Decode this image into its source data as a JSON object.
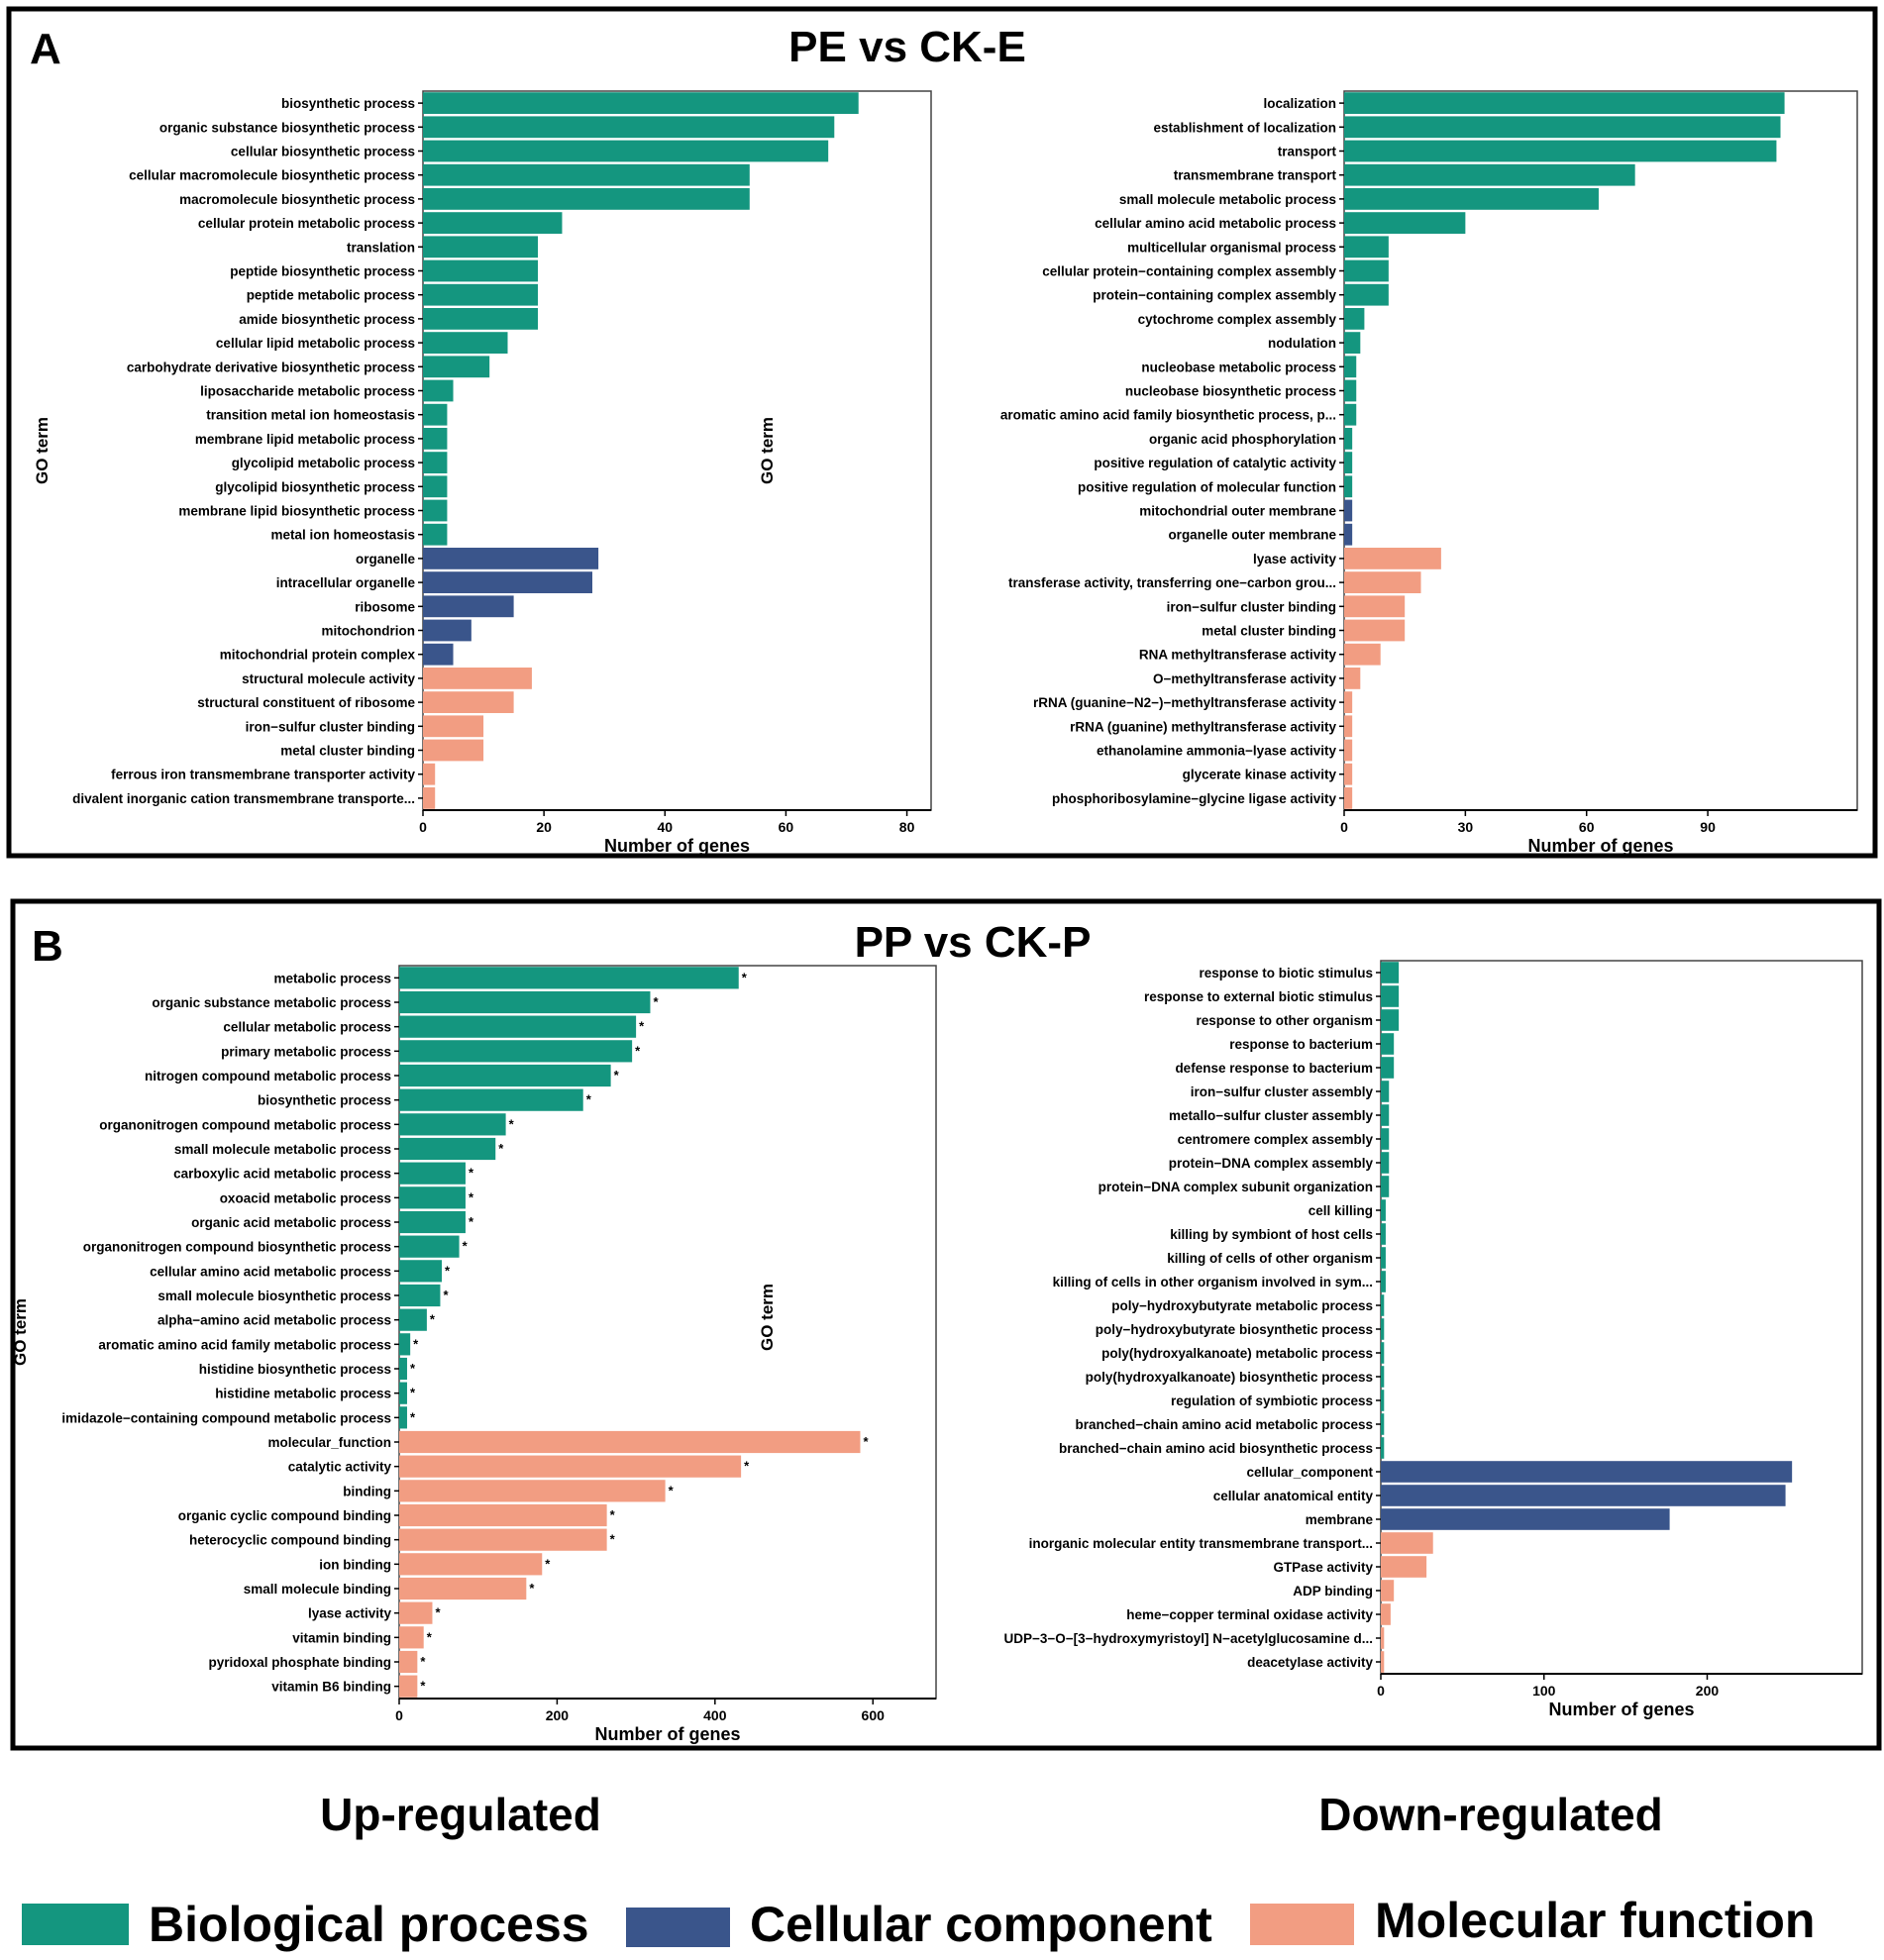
{
  "panels": [
    {
      "letter": "A",
      "title": "PE vs CK-E"
    },
    {
      "letter": "B",
      "title": "PP vs CK-P"
    }
  ],
  "footer": {
    "up_label": "Up-regulated",
    "down_label": "Down-regulated",
    "legend": [
      {
        "label": "Biological process",
        "color": "#14967F"
      },
      {
        "label": "Cellular component",
        "color": "#3A558B"
      },
      {
        "label": "Molecular function",
        "color": "#F29D82"
      }
    ]
  },
  "chart_data": [
    {
      "panel": "A",
      "type": "bar",
      "orientation": "horizontal",
      "xlabel": "Number of genes",
      "ylabel": "GO term",
      "xlim": [
        0,
        84
      ],
      "xticks": [
        0,
        20,
        40,
        60,
        80
      ],
      "bars": [
        {
          "term": "biosynthetic process",
          "value": 72,
          "cat": "BP"
        },
        {
          "term": "organic substance biosynthetic process",
          "value": 68,
          "cat": "BP"
        },
        {
          "term": "cellular biosynthetic process",
          "value": 67,
          "cat": "BP"
        },
        {
          "term": "cellular macromolecule biosynthetic process",
          "value": 54,
          "cat": "BP"
        },
        {
          "term": "macromolecule biosynthetic process",
          "value": 54,
          "cat": "BP"
        },
        {
          "term": "cellular protein metabolic process",
          "value": 23,
          "cat": "BP"
        },
        {
          "term": "translation",
          "value": 19,
          "cat": "BP"
        },
        {
          "term": "peptide biosynthetic process",
          "value": 19,
          "cat": "BP"
        },
        {
          "term": "peptide metabolic process",
          "value": 19,
          "cat": "BP"
        },
        {
          "term": "amide biosynthetic process",
          "value": 19,
          "cat": "BP"
        },
        {
          "term": "cellular lipid metabolic process",
          "value": 14,
          "cat": "BP"
        },
        {
          "term": "carbohydrate derivative biosynthetic process",
          "value": 11,
          "cat": "BP"
        },
        {
          "term": "liposaccharide metabolic process",
          "value": 5,
          "cat": "BP"
        },
        {
          "term": "transition metal ion homeostasis",
          "value": 4,
          "cat": "BP"
        },
        {
          "term": "membrane lipid metabolic process",
          "value": 4,
          "cat": "BP"
        },
        {
          "term": "glycolipid metabolic process",
          "value": 4,
          "cat": "BP"
        },
        {
          "term": "glycolipid biosynthetic process",
          "value": 4,
          "cat": "BP"
        },
        {
          "term": "membrane lipid biosynthetic process",
          "value": 4,
          "cat": "BP"
        },
        {
          "term": "metal ion homeostasis",
          "value": 4,
          "cat": "BP"
        },
        {
          "term": "organelle",
          "value": 29,
          "cat": "CC"
        },
        {
          "term": "intracellular organelle",
          "value": 28,
          "cat": "CC"
        },
        {
          "term": "ribosome",
          "value": 15,
          "cat": "CC"
        },
        {
          "term": "mitochondrion",
          "value": 8,
          "cat": "CC"
        },
        {
          "term": "mitochondrial protein complex",
          "value": 5,
          "cat": "CC"
        },
        {
          "term": "structural molecule activity",
          "value": 18,
          "cat": "MF"
        },
        {
          "term": "structural constituent of ribosome",
          "value": 15,
          "cat": "MF"
        },
        {
          "term": "iron−sulfur cluster binding",
          "value": 10,
          "cat": "MF"
        },
        {
          "term": "metal cluster binding",
          "value": 10,
          "cat": "MF"
        },
        {
          "term": "ferrous iron transmembrane transporter activity",
          "value": 2,
          "cat": "MF"
        },
        {
          "term": "divalent inorganic cation transmembrane transporte...",
          "value": 2,
          "cat": "MF"
        }
      ]
    },
    {
      "panel": "A",
      "type": "bar",
      "orientation": "horizontal",
      "xlabel": "Number of genes",
      "ylabel": "GO term",
      "xlim": [
        0,
        127
      ],
      "xticks": [
        0,
        30,
        60,
        90
      ],
      "bars": [
        {
          "term": "localization",
          "value": 109,
          "cat": "BP"
        },
        {
          "term": "establishment of localization",
          "value": 108,
          "cat": "BP"
        },
        {
          "term": "transport",
          "value": 107,
          "cat": "BP"
        },
        {
          "term": "transmembrane transport",
          "value": 72,
          "cat": "BP"
        },
        {
          "term": "small molecule metabolic process",
          "value": 63,
          "cat": "BP"
        },
        {
          "term": "cellular amino acid metabolic process",
          "value": 30,
          "cat": "BP"
        },
        {
          "term": "multicellular organismal process",
          "value": 11,
          "cat": "BP"
        },
        {
          "term": "cellular protein−containing complex assembly",
          "value": 11,
          "cat": "BP"
        },
        {
          "term": "protein−containing complex assembly",
          "value": 11,
          "cat": "BP"
        },
        {
          "term": "cytochrome complex assembly",
          "value": 5,
          "cat": "BP"
        },
        {
          "term": "nodulation",
          "value": 4,
          "cat": "BP"
        },
        {
          "term": "nucleobase metabolic process",
          "value": 3,
          "cat": "BP"
        },
        {
          "term": "nucleobase biosynthetic process",
          "value": 3,
          "cat": "BP"
        },
        {
          "term": "aromatic amino acid family biosynthetic process, p...",
          "value": 3,
          "cat": "BP"
        },
        {
          "term": "organic acid phosphorylation",
          "value": 2,
          "cat": "BP"
        },
        {
          "term": "positive regulation of catalytic activity",
          "value": 2,
          "cat": "BP"
        },
        {
          "term": "positive regulation of molecular function",
          "value": 2,
          "cat": "BP"
        },
        {
          "term": "mitochondrial outer membrane",
          "value": 2,
          "cat": "CC"
        },
        {
          "term": "organelle outer membrane",
          "value": 2,
          "cat": "CC"
        },
        {
          "term": "lyase activity",
          "value": 24,
          "cat": "MF"
        },
        {
          "term": "transferase activity, transferring one−carbon grou...",
          "value": 19,
          "cat": "MF"
        },
        {
          "term": "iron−sulfur cluster binding",
          "value": 15,
          "cat": "MF"
        },
        {
          "term": "metal cluster binding",
          "value": 15,
          "cat": "MF"
        },
        {
          "term": "RNA methyltransferase activity",
          "value": 9,
          "cat": "MF"
        },
        {
          "term": "O−methyltransferase activity",
          "value": 4,
          "cat": "MF"
        },
        {
          "term": "rRNA (guanine−N2−)−methyltransferase activity",
          "value": 2,
          "cat": "MF"
        },
        {
          "term": "rRNA (guanine) methyltransferase activity",
          "value": 2,
          "cat": "MF"
        },
        {
          "term": "ethanolamine ammonia−lyase activity",
          "value": 2,
          "cat": "MF"
        },
        {
          "term": "glycerate kinase activity",
          "value": 2,
          "cat": "MF"
        },
        {
          "term": "phosphoribosylamine−glycine ligase activity",
          "value": 2,
          "cat": "MF"
        }
      ]
    },
    {
      "panel": "B",
      "type": "bar",
      "orientation": "horizontal",
      "xlabel": "Number of genes",
      "ylabel": "GO term",
      "xlim": [
        0,
        680
      ],
      "xticks": [
        0,
        200,
        400,
        600
      ],
      "significance_marker": "*",
      "bars": [
        {
          "term": "metabolic process",
          "value": 430,
          "cat": "BP"
        },
        {
          "term": "organic substance metabolic process",
          "value": 318,
          "cat": "BP"
        },
        {
          "term": "cellular metabolic process",
          "value": 300,
          "cat": "BP"
        },
        {
          "term": "primary metabolic process",
          "value": 295,
          "cat": "BP"
        },
        {
          "term": "nitrogen compound metabolic process",
          "value": 268,
          "cat": "BP"
        },
        {
          "term": "biosynthetic process",
          "value": 233,
          "cat": "BP"
        },
        {
          "term": "organonitrogen compound metabolic process",
          "value": 135,
          "cat": "BP"
        },
        {
          "term": "small molecule metabolic process",
          "value": 122,
          "cat": "BP"
        },
        {
          "term": "carboxylic acid metabolic process",
          "value": 84,
          "cat": "BP"
        },
        {
          "term": "oxoacid metabolic process",
          "value": 84,
          "cat": "BP"
        },
        {
          "term": "organic acid metabolic process",
          "value": 84,
          "cat": "BP"
        },
        {
          "term": "organonitrogen compound biosynthetic process",
          "value": 76,
          "cat": "BP"
        },
        {
          "term": "cellular amino acid metabolic process",
          "value": 54,
          "cat": "BP"
        },
        {
          "term": "small molecule biosynthetic process",
          "value": 52,
          "cat": "BP"
        },
        {
          "term": "alpha−amino acid metabolic process",
          "value": 35,
          "cat": "BP"
        },
        {
          "term": "aromatic amino acid family metabolic process",
          "value": 14,
          "cat": "BP"
        },
        {
          "term": "histidine biosynthetic process",
          "value": 10,
          "cat": "BP"
        },
        {
          "term": "histidine metabolic process",
          "value": 10,
          "cat": "BP"
        },
        {
          "term": "imidazole−containing compound metabolic process",
          "value": 10,
          "cat": "BP"
        },
        {
          "term": "molecular_function",
          "value": 584,
          "cat": "MF"
        },
        {
          "term": "catalytic activity",
          "value": 433,
          "cat": "MF"
        },
        {
          "term": "binding",
          "value": 337,
          "cat": "MF"
        },
        {
          "term": "organic cyclic compound binding",
          "value": 263,
          "cat": "MF"
        },
        {
          "term": "heterocyclic compound binding",
          "value": 263,
          "cat": "MF"
        },
        {
          "term": "ion binding",
          "value": 181,
          "cat": "MF"
        },
        {
          "term": "small molecule binding",
          "value": 161,
          "cat": "MF"
        },
        {
          "term": "lyase activity",
          "value": 42,
          "cat": "MF"
        },
        {
          "term": "vitamin binding",
          "value": 31,
          "cat": "MF"
        },
        {
          "term": "pyridoxal phosphate binding",
          "value": 23,
          "cat": "MF"
        },
        {
          "term": "vitamin B6 binding",
          "value": 23,
          "cat": "MF"
        }
      ]
    },
    {
      "panel": "B",
      "type": "bar",
      "orientation": "horizontal",
      "xlabel": "Number of genes",
      "ylabel": "GO term",
      "xlim": [
        0,
        295
      ],
      "xticks": [
        0,
        100,
        200
      ],
      "bars": [
        {
          "term": "response to biotic stimulus",
          "value": 11,
          "cat": "BP"
        },
        {
          "term": "response to external biotic stimulus",
          "value": 11,
          "cat": "BP"
        },
        {
          "term": "response to other organism",
          "value": 11,
          "cat": "BP"
        },
        {
          "term": "response to bacterium",
          "value": 8,
          "cat": "BP"
        },
        {
          "term": "defense response to bacterium",
          "value": 8,
          "cat": "BP"
        },
        {
          "term": "iron−sulfur cluster assembly",
          "value": 5,
          "cat": "BP"
        },
        {
          "term": "metallo−sulfur cluster assembly",
          "value": 5,
          "cat": "BP"
        },
        {
          "term": "centromere complex assembly",
          "value": 5,
          "cat": "BP"
        },
        {
          "term": "protein−DNA complex assembly",
          "value": 5,
          "cat": "BP"
        },
        {
          "term": "protein−DNA complex subunit organization",
          "value": 5,
          "cat": "BP"
        },
        {
          "term": "cell killing",
          "value": 3,
          "cat": "BP"
        },
        {
          "term": "killing by symbiont of host cells",
          "value": 3,
          "cat": "BP"
        },
        {
          "term": "killing of cells of other organism",
          "value": 3,
          "cat": "BP"
        },
        {
          "term": "killing of cells in other organism involved in sym...",
          "value": 3,
          "cat": "BP"
        },
        {
          "term": "poly−hydroxybutyrate metabolic process",
          "value": 2,
          "cat": "BP"
        },
        {
          "term": "poly−hydroxybutyrate biosynthetic process",
          "value": 2,
          "cat": "BP"
        },
        {
          "term": "poly(hydroxyalkanoate) metabolic process",
          "value": 2,
          "cat": "BP"
        },
        {
          "term": "poly(hydroxyalkanoate) biosynthetic process",
          "value": 2,
          "cat": "BP"
        },
        {
          "term": "regulation of symbiotic process",
          "value": 2,
          "cat": "BP"
        },
        {
          "term": "branched−chain amino acid metabolic process",
          "value": 2,
          "cat": "BP"
        },
        {
          "term": "branched−chain amino acid biosynthetic process",
          "value": 2,
          "cat": "BP"
        },
        {
          "term": "cellular_component",
          "value": 252,
          "cat": "CC"
        },
        {
          "term": "cellular anatomical entity",
          "value": 248,
          "cat": "CC"
        },
        {
          "term": "membrane",
          "value": 177,
          "cat": "CC"
        },
        {
          "term": "inorganic molecular entity transmembrane transport...",
          "value": 32,
          "cat": "MF"
        },
        {
          "term": "GTPase activity",
          "value": 28,
          "cat": "MF"
        },
        {
          "term": "ADP binding",
          "value": 8,
          "cat": "MF"
        },
        {
          "term": "heme−copper terminal oxidase activity",
          "value": 6,
          "cat": "MF"
        },
        {
          "term": "UDP−3−O−[3−hydroxymyristoyl] N−acetylglucosamine d...",
          "value": 2,
          "cat": "MF"
        },
        {
          "term": "deacetylase activity",
          "value": 2,
          "cat": "MF"
        }
      ]
    }
  ]
}
